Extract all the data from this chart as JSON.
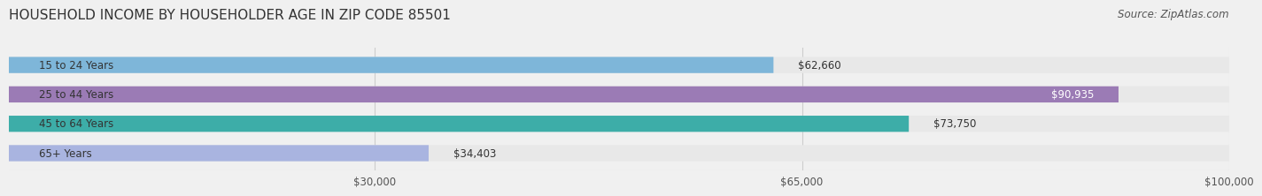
{
  "title": "HOUSEHOLD INCOME BY HOUSEHOLDER AGE IN ZIP CODE 85501",
  "source": "Source: ZipAtlas.com",
  "categories": [
    "15 to 24 Years",
    "25 to 44 Years",
    "45 to 64 Years",
    "65+ Years"
  ],
  "values": [
    62660,
    90935,
    73750,
    34403
  ],
  "bar_colors": [
    "#7EB6D9",
    "#9B7BB5",
    "#3DADA8",
    "#A9B4E0"
  ],
  "bar_labels": [
    "$62,660",
    "$90,935",
    "$73,750",
    "$34,403"
  ],
  "label_colors": [
    "#555555",
    "#ffffff",
    "#ffffff",
    "#555555"
  ],
  "xmax": 100000,
  "xticks": [
    30000,
    65000,
    100000
  ],
  "xticklabels": [
    "$30,000",
    "$65,000",
    "$100,000"
  ],
  "bg_color": "#f0f0f0",
  "bar_bg_color": "#e8e8e8",
  "title_fontsize": 11,
  "source_fontsize": 8.5,
  "label_fontsize": 8.5,
  "tick_fontsize": 8.5,
  "cat_fontsize": 8.5
}
